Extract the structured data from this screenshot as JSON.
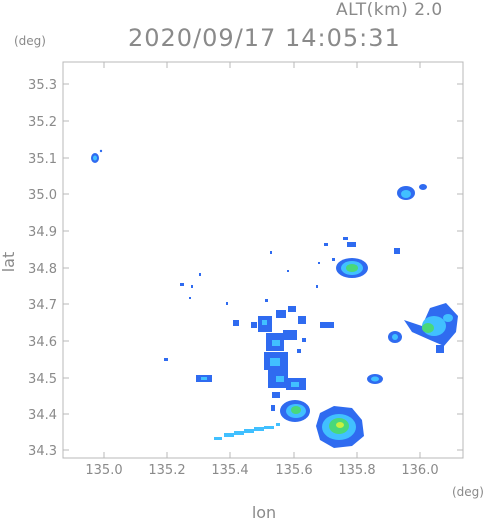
{
  "header": {
    "altitude_label": "ALT(km) 2.0",
    "timestamp": "2020/09/17 14:05:31"
  },
  "axes": {
    "x_unit": "(deg)",
    "y_unit": "(deg)",
    "x_title": "lon",
    "y_title": "lat",
    "x_ticks": [
      "135.0",
      "135.2",
      "135.4",
      "135.6",
      "135.8",
      "136.0"
    ],
    "y_ticks": [
      "34.3",
      "34.4",
      "34.5",
      "34.6",
      "34.7",
      "34.8",
      "34.9",
      "35.0",
      "35.1",
      "35.2",
      "35.3"
    ]
  },
  "colors": {
    "frame": "#b8b8b8",
    "text": "#8a8a8a",
    "echo_weak": "#2f6bf0",
    "echo_medium": "#41c0ff",
    "echo_strong": "#49d87a",
    "echo_core": "#c8f040"
  }
}
